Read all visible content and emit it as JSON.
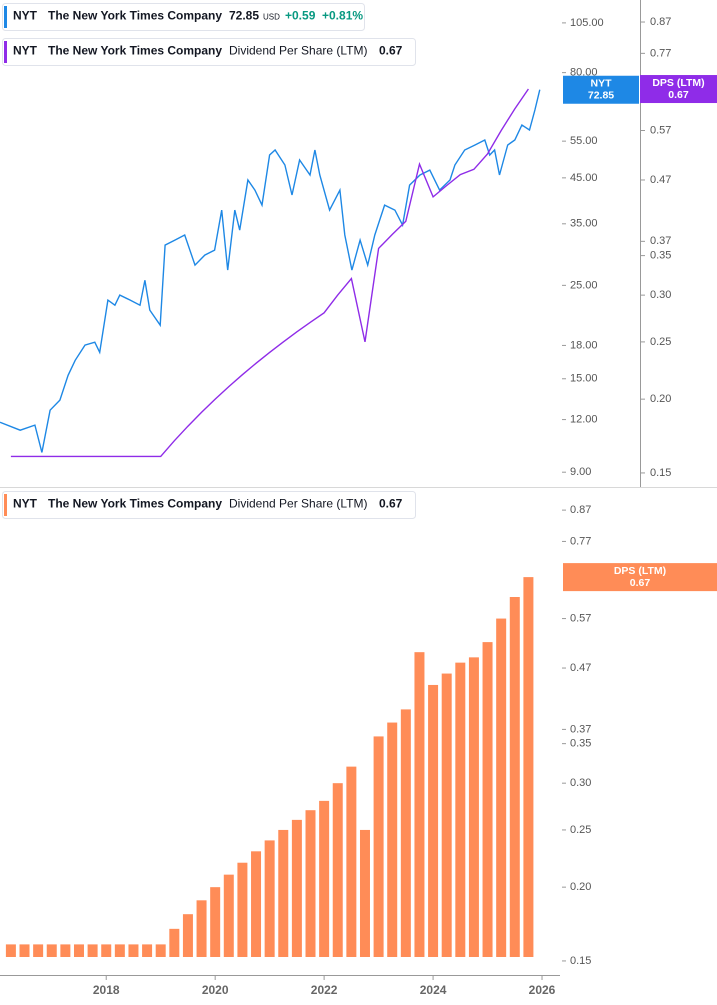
{
  "chart_data": [
    {
      "type": "line",
      "series": [
        {
          "symbol": "NYT",
          "name": "The New York Times Company",
          "color": "#1e88e5",
          "last": 72.85,
          "currency": "USD",
          "change": "+0.59",
          "change_percent": "+0.81%",
          "x": [
            2016.05,
            2016.42,
            2016.69,
            2016.82,
            2016.97,
            2017.15,
            2017.3,
            2017.43,
            2017.61,
            2017.79,
            2017.88,
            2018.03,
            2018.16,
            2018.25,
            2018.44,
            2018.62,
            2018.71,
            2018.8,
            2018.99,
            2019.08,
            2019.26,
            2019.44,
            2019.63,
            2019.81,
            2019.99,
            2020.12,
            2020.23,
            2020.36,
            2020.45,
            2020.6,
            2020.73,
            2020.86,
            2021.0,
            2021.1,
            2021.28,
            2021.41,
            2021.55,
            2021.74,
            2021.83,
            2021.92,
            2022.1,
            2022.29,
            2022.38,
            2022.51,
            2022.66,
            2022.8,
            2022.93,
            2023.11,
            2023.3,
            2023.44,
            2023.57,
            2023.76,
            2023.94,
            2024.12,
            2024.31,
            2024.4,
            2024.58,
            2024.77,
            2024.95,
            2025.04,
            2025.13,
            2025.22,
            2025.37,
            2025.5,
            2025.63,
            2025.77,
            2025.87,
            2025.96
          ],
          "values": [
            11.82,
            11.32,
            11.64,
            10.03,
            12.63,
            13.35,
            15.29,
            16.59,
            18.03,
            18.32,
            17.34,
            23.06,
            22.43,
            23.7,
            23.06,
            22.43,
            25.71,
            21.83,
            20.11,
            31.15,
            32.01,
            32.92,
            27.92,
            29.49,
            30.32,
            37.72,
            27.17,
            37.72,
            33.82,
            44.48,
            42.09,
            38.78,
            50.98,
            52.41,
            48.28,
            40.97,
            49.6,
            45.7,
            52.41,
            45.7,
            37.72,
            42.09,
            32.92,
            27.17,
            32.01,
            27.92,
            32.92,
            38.78,
            37.72,
            34.76,
            43.25,
            45.7,
            46.95,
            42.09,
            44.48,
            48.28,
            52.41,
            53.85,
            55.35,
            50.98,
            52.41,
            45.7,
            53.85,
            55.35,
            60.09,
            58.45,
            65.23,
            72.85
          ]
        },
        {
          "symbol": "NYT",
          "name": "The New York Times Company",
          "metric": "Dividend Per Share (LTM)",
          "tag": "DPS (LTM)",
          "color": "#8f2ce8",
          "axis": "y2",
          "last": 0.67,
          "x": [
            2016.25,
            2016.5,
            2016.75,
            2017,
            2017.25,
            2017.5,
            2017.75,
            2018,
            2018.25,
            2018.5,
            2018.75,
            2019,
            2019.25,
            2019.5,
            2019.75,
            2020,
            2020.25,
            2020.5,
            2020.75,
            2021,
            2021.25,
            2021.5,
            2021.75,
            2022,
            2022.25,
            2022.5,
            2022.75,
            2023,
            2023.25,
            2023.5,
            2023.75,
            2024,
            2024.25,
            2024.5,
            2024.75,
            2025,
            2025.25,
            2025.5,
            2025.75
          ],
          "values": [
            0.16,
            0.16,
            0.16,
            0.16,
            0.16,
            0.16,
            0.16,
            0.16,
            0.16,
            0.16,
            0.16,
            0.16,
            0.17,
            0.18,
            0.19,
            0.2,
            0.21,
            0.22,
            0.23,
            0.24,
            0.25,
            0.26,
            0.27,
            0.28,
            0.3,
            0.32,
            0.25,
            0.36,
            0.38,
            0.4,
            0.5,
            0.44,
            0.46,
            0.48,
            0.49,
            0.52,
            0.57,
            0.62,
            0.67
          ]
        }
      ],
      "log_scale": true,
      "xlim": [
        2016.05,
        2026.33
      ],
      "ylim": [
        8.3,
        119
      ],
      "yticks": [
        {
          "value": 105,
          "label": "105.00"
        },
        {
          "value": 80,
          "label": "80.00"
        },
        {
          "value": 55,
          "label": "55.00"
        },
        {
          "value": 45,
          "label": "45.00"
        },
        {
          "value": 35,
          "label": "35.00"
        },
        {
          "value": 25,
          "label": "25.00"
        },
        {
          "value": 18,
          "label": "18.00"
        },
        {
          "value": 15,
          "label": "15.00"
        },
        {
          "value": 12,
          "label": "12.00"
        },
        {
          "value": 9,
          "label": "9.00"
        }
      ],
      "y2lim": [
        0.142,
        0.948
      ],
      "y2ticks": [
        0.87,
        0.77,
        0.57,
        0.47,
        0.37,
        0.35,
        {
          "value": 0.3,
          "label": "0.30"
        },
        0.25,
        {
          "value": 0.2,
          "label": "0.20"
        },
        0.15
      ]
    },
    {
      "type": "bar",
      "series": [
        {
          "symbol": "NYT",
          "name": "The New York Times Company",
          "metric": "Dividend Per Share (LTM)",
          "tag": "DPS (LTM)",
          "color": "#ff8c57",
          "last": 0.67,
          "x": [
            2016.25,
            2016.5,
            2016.75,
            2017,
            2017.25,
            2017.5,
            2017.75,
            2018,
            2018.25,
            2018.5,
            2018.75,
            2019,
            2019.25,
            2019.5,
            2019.75,
            2020,
            2020.25,
            2020.5,
            2020.75,
            2021,
            2021.25,
            2021.5,
            2021.75,
            2022,
            2022.25,
            2022.5,
            2022.75,
            2023,
            2023.25,
            2023.5,
            2023.75,
            2024,
            2024.25,
            2024.5,
            2024.75,
            2025,
            2025.25,
            2025.5,
            2025.75
          ],
          "values": [
            0.16,
            0.16,
            0.16,
            0.16,
            0.16,
            0.16,
            0.16,
            0.16,
            0.16,
            0.16,
            0.16,
            0.16,
            0.17,
            0.18,
            0.19,
            0.2,
            0.21,
            0.22,
            0.23,
            0.24,
            0.25,
            0.26,
            0.27,
            0.28,
            0.3,
            0.32,
            0.25,
            0.36,
            0.38,
            0.4,
            0.5,
            0.44,
            0.46,
            0.48,
            0.49,
            0.52,
            0.57,
            0.62,
            0.67
          ]
        }
      ],
      "log_scale": true,
      "xlim": [
        2016.05,
        2026.33
      ],
      "xticks": [
        2018,
        2020,
        2022,
        2024,
        2026
      ],
      "ylim": [
        0.142,
        0.941
      ],
      "yticks": [
        0.87,
        0.77,
        0.57,
        0.47,
        0.37,
        0.35,
        {
          "value": 0.3,
          "label": "0.30"
        },
        0.25,
        {
          "value": 0.2,
          "label": "0.20"
        },
        0.15
      ]
    }
  ]
}
